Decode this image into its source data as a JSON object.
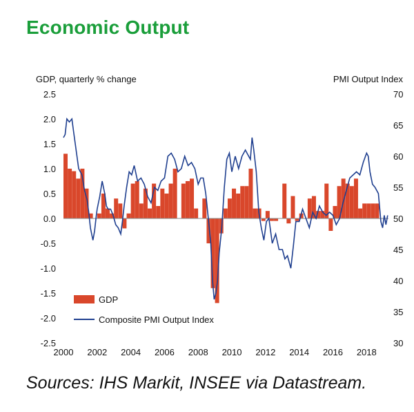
{
  "title": "Economic Output",
  "source": "Sources: IHS Markit, INSEE via Datastream.",
  "chart_data": {
    "type": "bar+line",
    "y_left_label": "GDP, quarterly % change",
    "y_right_label": "PMI Output  Index",
    "y_left_ticks": [
      "2.5",
      "2.0",
      "1.5",
      "1.0",
      "0.5",
      "0.0",
      "-0.5",
      "-1.0",
      "-1.5",
      "-2.0",
      "-2.5"
    ],
    "y_right_ticks": [
      "70",
      "65",
      "60",
      "55",
      "50",
      "45",
      "40",
      "35",
      "30"
    ],
    "x_ticks": [
      "2000",
      "2002",
      "2004",
      "2006",
      "2008",
      "2010",
      "2012",
      "2014",
      "2016",
      "2018"
    ],
    "ylim_left": [
      -2.5,
      2.5
    ],
    "ylim_right": [
      30,
      70
    ],
    "xlim": [
      2000,
      2019.3
    ],
    "colors": {
      "bar": "#d9472b",
      "line": "#1f3f8f"
    },
    "legend": [
      {
        "name": "GDP",
        "kind": "bar"
      },
      {
        "name": "Composite PMI Output Index",
        "kind": "line"
      }
    ],
    "gdp": {
      "name": "GDP",
      "start_year": 2000,
      "values": [
        1.3,
        1.0,
        0.95,
        0.8,
        1.0,
        0.6,
        0.1,
        0.0,
        0.1,
        0.5,
        0.2,
        0.1,
        0.4,
        0.3,
        -0.2,
        0.1,
        0.7,
        0.75,
        0.3,
        0.6,
        0.2,
        0.7,
        0.25,
        0.6,
        0.5,
        0.7,
        1.0,
        0.0,
        0.7,
        0.75,
        0.8,
        0.2,
        0.0,
        0.4,
        -0.5,
        -1.4,
        -1.7,
        -0.3,
        0.2,
        0.4,
        0.6,
        0.5,
        0.65,
        0.65,
        1.0,
        0.2,
        0.2,
        -0.05,
        0.15,
        -0.05,
        -0.05,
        0.0,
        0.7,
        -0.1,
        0.45,
        -0.05,
        0.1,
        0.0,
        0.4,
        0.45,
        0.15,
        0.15,
        0.7,
        -0.25,
        0.25,
        0.65,
        0.8,
        0.7,
        0.65,
        0.8,
        0.2,
        0.3,
        0.3,
        0.3,
        0.3
      ]
    },
    "pmi": {
      "name": "Composite PMI Output Index",
      "x": [
        2000.0,
        2000.1,
        2000.2,
        2000.35,
        2000.5,
        2000.6,
        2000.75,
        2000.9,
        2001.0,
        2001.1,
        2001.25,
        2001.4,
        2001.5,
        2001.6,
        2001.75,
        2001.85,
        2001.95,
        2002.0,
        2002.15,
        2002.3,
        2002.45,
        2002.55,
        2002.65,
        2002.8,
        2002.95,
        2003.1,
        2003.25,
        2003.4,
        2003.5,
        2003.6,
        2003.75,
        2003.9,
        2004.05,
        2004.2,
        2004.4,
        2004.6,
        2004.8,
        2005.0,
        2005.2,
        2005.4,
        2005.6,
        2005.8,
        2006.0,
        2006.2,
        2006.4,
        2006.6,
        2006.8,
        2007.0,
        2007.2,
        2007.4,
        2007.6,
        2007.8,
        2008.0,
        2008.15,
        2008.3,
        2008.45,
        2008.6,
        2008.75,
        2008.85,
        2008.95,
        2009.05,
        2009.15,
        2009.25,
        2009.4,
        2009.55,
        2009.7,
        2009.85,
        2010.0,
        2010.2,
        2010.4,
        2010.6,
        2010.8,
        2011.0,
        2011.1,
        2011.2,
        2011.3,
        2011.45,
        2011.6,
        2011.75,
        2011.9,
        2012.05,
        2012.2,
        2012.4,
        2012.6,
        2012.8,
        2013.0,
        2013.15,
        2013.3,
        2013.5,
        2013.65,
        2013.8,
        2014.0,
        2014.2,
        2014.4,
        2014.6,
        2014.8,
        2015.0,
        2015.2,
        2015.4,
        2015.6,
        2015.8,
        2016.0,
        2016.2,
        2016.4,
        2016.6,
        2016.8,
        2017.0,
        2017.2,
        2017.4,
        2017.6,
        2017.8,
        2018.0,
        2018.1,
        2018.2,
        2018.35,
        2018.5,
        2018.7,
        2018.85,
        2018.95,
        2019.05,
        2019.15,
        2019.25
      ],
      "y": [
        63.0,
        63.5,
        66.0,
        65.5,
        66.0,
        64.0,
        61.0,
        58.0,
        57.5,
        57.0,
        54.5,
        53.0,
        51.0,
        48.5,
        46.5,
        48.0,
        50.5,
        51.5,
        53.5,
        56.0,
        54.0,
        52.0,
        51.5,
        51.5,
        50.5,
        49.0,
        48.5,
        47.5,
        49.5,
        52.0,
        55.0,
        57.5,
        57.0,
        58.5,
        56.0,
        56.5,
        55.5,
        53.5,
        52.5,
        55.0,
        54.5,
        56.0,
        56.5,
        60.0,
        60.5,
        59.5,
        57.5,
        58.0,
        60.0,
        58.5,
        59.0,
        58.0,
        55.5,
        56.5,
        56.5,
        54.0,
        50.0,
        46.0,
        40.0,
        37.0,
        38.0,
        40.0,
        44.5,
        48.5,
        55.0,
        59.5,
        60.5,
        57.5,
        60.0,
        58.0,
        60.0,
        61.0,
        60.0,
        59.5,
        63.0,
        61.0,
        57.5,
        51.0,
        48.5,
        46.5,
        49.5,
        50.0,
        46.0,
        47.5,
        45.0,
        45.0,
        43.5,
        44.0,
        42.0,
        45.5,
        49.5,
        49.5,
        51.5,
        50.0,
        48.5,
        51.0,
        50.0,
        52.0,
        51.0,
        50.5,
        51.0,
        50.5,
        49.0,
        50.0,
        52.5,
        54.5,
        56.5,
        57.0,
        57.5,
        57.0,
        59.0,
        60.5,
        60.0,
        57.5,
        55.5,
        55.0,
        54.0,
        49.5,
        48.5,
        50.5,
        49.0,
        50.5
      ]
    }
  }
}
